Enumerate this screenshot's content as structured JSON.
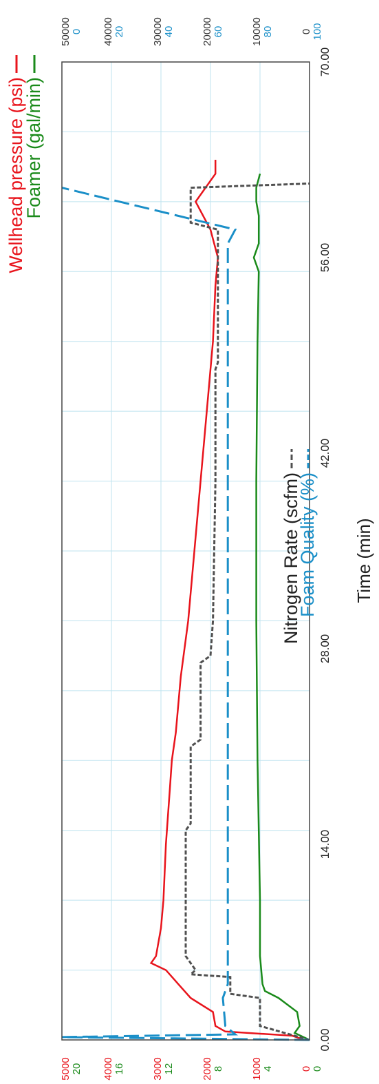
{
  "chart_data": {
    "type": "line",
    "xlabel": "Time (min)",
    "xlim": [
      0,
      70
    ],
    "x_ticks": [
      "0.00",
      "14.00",
      "28.00",
      "42.00",
      "56.00",
      "70.00"
    ],
    "legend": [
      {
        "name": "Wellhead pressure (psi)",
        "color": "#e8141c",
        "style": "solid"
      },
      {
        "name": "Foamer (gal/min)",
        "color": "#1a8a1a",
        "style": "solid"
      },
      {
        "name": "Nitrogen Rate (scfm)",
        "color": "#505050",
        "style": "dashed"
      },
      {
        "name": "Foam Quality (%)",
        "color": "#1a8fc8",
        "style": "dashed"
      }
    ],
    "axes": {
      "pressure": {
        "color": "#e8141c",
        "ticks": [
          "0",
          "1000",
          "2000",
          "3000",
          "4000",
          "5000"
        ],
        "lim": [
          0,
          5000
        ]
      },
      "foamer": {
        "color": "#1a8a1a",
        "ticks": [
          "0",
          "4",
          "8",
          "12",
          "16",
          "20"
        ],
        "lim": [
          0,
          20
        ]
      },
      "nitrogen": {
        "color": "#333333",
        "ticks": [
          "0",
          "10000",
          "20000",
          "30000",
          "40000",
          "50000"
        ],
        "lim": [
          0,
          50000
        ]
      },
      "foam_quality": {
        "color": "#1a8fc8",
        "ticks": [
          "100",
          "80",
          "60",
          "40",
          "20",
          "0"
        ],
        "lim": [
          100,
          0
        ]
      }
    },
    "series": [
      {
        "name": "Wellhead pressure (psi)",
        "axis": "pressure",
        "color": "#e8141c",
        "dash": false,
        "x": [
          0,
          0.3,
          0.6,
          1,
          2,
          3,
          4,
          5,
          5.5,
          6,
          8,
          10,
          14,
          18,
          20,
          22,
          26,
          30,
          34,
          38,
          42,
          46,
          50,
          54,
          56,
          58,
          60,
          62,
          63
        ],
        "y": [
          100,
          350,
          1700,
          1900,
          1950,
          2400,
          2650,
          2900,
          3200,
          3100,
          3000,
          2950,
          2900,
          2820,
          2780,
          2700,
          2600,
          2450,
          2350,
          2250,
          2150,
          2050,
          1950,
          1900,
          1850,
          2000,
          2300,
          1900,
          1900
        ]
      },
      {
        "name": "Foamer (gal/min)",
        "axis": "foamer",
        "color": "#1a8a1a",
        "dash": false,
        "x": [
          0,
          0.5,
          1,
          2,
          3,
          3.5,
          4,
          6,
          10,
          20,
          30,
          40,
          50,
          55,
          56,
          57,
          59,
          60,
          61,
          62
        ],
        "y": [
          0,
          1.2,
          0.8,
          1,
          2.5,
          3.6,
          3.8,
          4,
          4,
          4.2,
          4.3,
          4.3,
          4.2,
          4.1,
          4.5,
          4.1,
          4.1,
          4.3,
          4.3,
          4.0
        ]
      },
      {
        "name": "Nitrogen Rate (scfm)",
        "axis": "nitrogen",
        "color": "#505050",
        "dash": true,
        "x": [
          0,
          0.5,
          1,
          3,
          3.3,
          4.5,
          4.7,
          5,
          6,
          7,
          15,
          15.5,
          21,
          21.5,
          27,
          27.5,
          30,
          40,
          48,
          48.5,
          56,
          58,
          58.5,
          61,
          61.3
        ],
        "y": [
          0,
          5000,
          10000,
          10000,
          16000,
          16000,
          24000,
          23000,
          25000,
          25000,
          25000,
          24000,
          24000,
          22000,
          22000,
          20000,
          19500,
          19000,
          19000,
          18500,
          18500,
          18500,
          24000,
          24000,
          0
        ]
      },
      {
        "name": "Foam Quality (%)",
        "axis": "foam_quality",
        "color": "#1a8fc8",
        "dash": true,
        "x": [
          0,
          0.2,
          0.4,
          1,
          3,
          4,
          6,
          10,
          20,
          30,
          40,
          50,
          57,
          58,
          61
        ],
        "y": [
          100,
          0,
          70,
          66,
          65,
          67,
          67,
          67,
          67,
          67,
          67,
          67,
          67,
          70,
          0
        ]
      }
    ],
    "grid": true,
    "legend_placement": "top"
  }
}
